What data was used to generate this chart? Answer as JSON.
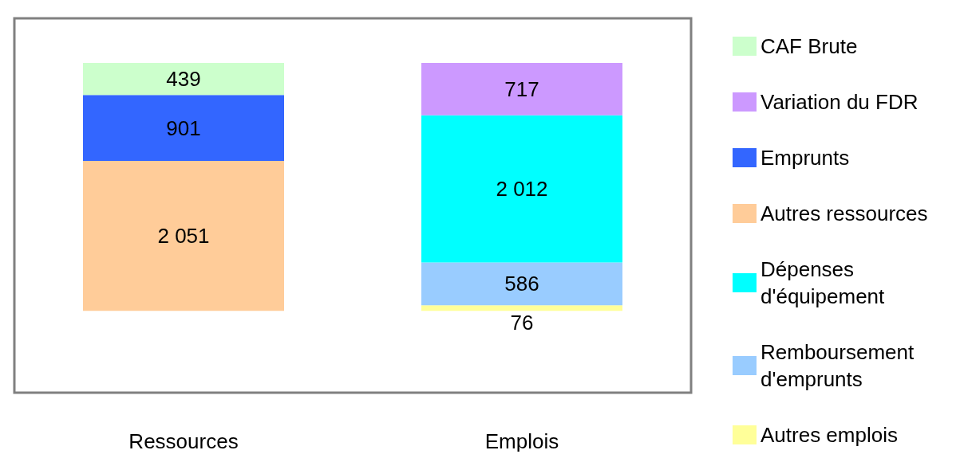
{
  "chart_data": {
    "type": "bar",
    "stacked": true,
    "data_labels": true,
    "legend": "right",
    "grid": false,
    "categories": [
      "Ressources",
      "Emplois"
    ],
    "series": [
      {
        "name": "Autres emplois",
        "color": "#ffff99",
        "values": [
          null,
          76
        ]
      },
      {
        "name": "Remboursement d'emprunts",
        "color": "#99ccff",
        "values": [
          null,
          586
        ]
      },
      {
        "name": "Dépenses d'équipement",
        "color": "#00ffff",
        "values": [
          null,
          2012
        ]
      },
      {
        "name": "Autres ressources",
        "color": "#ffcc99",
        "values": [
          2051,
          null
        ]
      },
      {
        "name": "Emprunts",
        "color": "#3366ff",
        "values": [
          901,
          null
        ]
      },
      {
        "name": "Variation du FDR",
        "color": "#cc99ff",
        "values": [
          null,
          717
        ]
      },
      {
        "name": "CAF Brute",
        "color": "#ccffcc",
        "values": [
          439,
          null
        ]
      }
    ]
  }
}
